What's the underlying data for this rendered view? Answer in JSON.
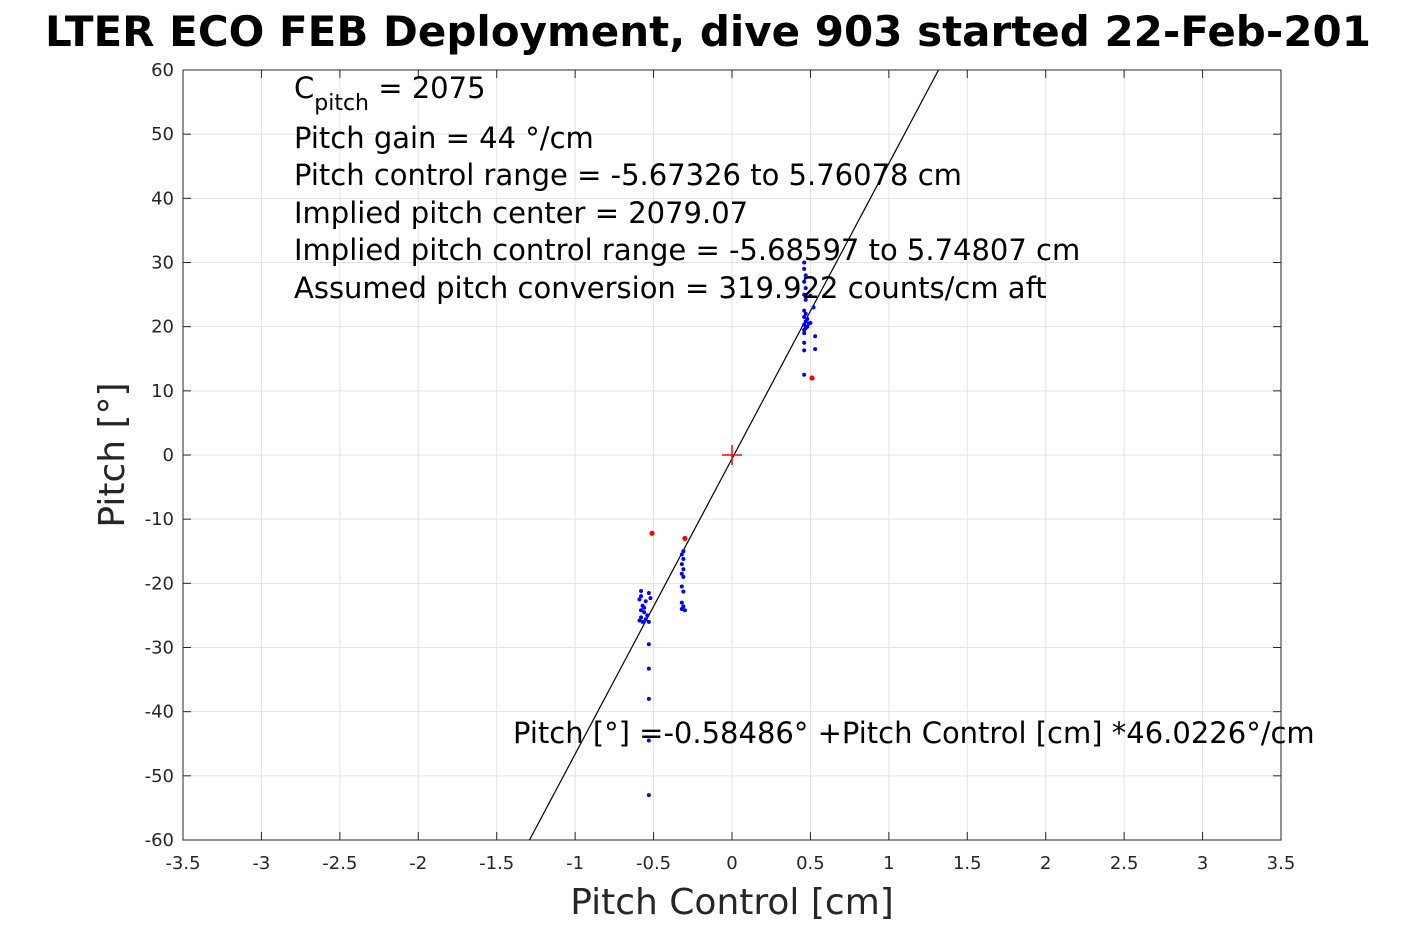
{
  "chart_data": {
    "type": "scatter",
    "title": "LTER ECO FEB Deployment, dive 903 started 22-Feb-201",
    "xlabel": "Pitch Control [cm]",
    "ylabel": "Pitch [°]",
    "xlim": [
      -3.5,
      3.5
    ],
    "ylim": [
      -60,
      60
    ],
    "grid": true,
    "x_ticks": [
      -3.5,
      -3,
      -2.5,
      -2,
      -1.5,
      -1,
      -0.5,
      0,
      0.5,
      1,
      1.5,
      2,
      2.5,
      3,
      3.5
    ],
    "y_ticks": [
      -60,
      -50,
      -40,
      -30,
      -20,
      -10,
      0,
      10,
      20,
      30,
      40,
      50,
      60
    ],
    "x_tick_labels": [
      "-3.5",
      "-3",
      "-2.5",
      "-2",
      "-1.5",
      "-1",
      "-0.5",
      "0",
      "0.5",
      "1",
      "1.5",
      "2",
      "2.5",
      "3",
      "3.5"
    ],
    "y_tick_labels": [
      "-60",
      "-50",
      "-40",
      "-30",
      "-20",
      "-10",
      "0",
      "10",
      "20",
      "30",
      "40",
      "50",
      "60"
    ],
    "fit_line": {
      "intercept": -0.58486,
      "slope": 46.0226,
      "color": "#000000"
    },
    "center_marker": {
      "x": 0,
      "y": 0,
      "color": "#ff0000",
      "shape": "plus"
    },
    "series": [
      {
        "color": "#0000ff",
        "points": [
          [
            0.46,
            30
          ],
          [
            0.46,
            29
          ],
          [
            0.47,
            28
          ],
          [
            0.46,
            27
          ],
          [
            0.47,
            26
          ],
          [
            0.46,
            25
          ],
          [
            0.47,
            24.2
          ],
          [
            0.5,
            24.8
          ],
          [
            0.52,
            23
          ],
          [
            0.46,
            22.5
          ],
          [
            0.47,
            22
          ],
          [
            0.46,
            21.5
          ],
          [
            0.48,
            21.2
          ],
          [
            0.47,
            20.8
          ],
          [
            0.49,
            20.5
          ],
          [
            0.46,
            20.3
          ],
          [
            0.48,
            20
          ],
          [
            0.47,
            19.8
          ],
          [
            0.46,
            19.5
          ],
          [
            0.5,
            20.6
          ],
          [
            0.46,
            19
          ],
          [
            0.53,
            18.5
          ],
          [
            0.46,
            17.5
          ],
          [
            0.46,
            16.3
          ],
          [
            0.53,
            16.5
          ],
          [
            0.46,
            12.5
          ],
          [
            -0.31,
            -15
          ],
          [
            -0.32,
            -15.5
          ],
          [
            -0.31,
            -16.2
          ],
          [
            -0.32,
            -17
          ],
          [
            -0.31,
            -17.8
          ],
          [
            -0.32,
            -18.5
          ],
          [
            -0.31,
            -19
          ],
          [
            -0.32,
            -20.5
          ],
          [
            -0.31,
            -21.3
          ],
          [
            -0.32,
            -23
          ],
          [
            -0.31,
            -23.6
          ],
          [
            -0.3,
            -24.2
          ],
          [
            -0.32,
            -24
          ],
          [
            -0.58,
            -21.2
          ],
          [
            -0.58,
            -22
          ],
          [
            -0.59,
            -22.5
          ],
          [
            -0.53,
            -21.5
          ],
          [
            -0.52,
            -22.3
          ],
          [
            -0.55,
            -22.8
          ],
          [
            -0.57,
            -23.5
          ],
          [
            -0.58,
            -24.2
          ],
          [
            -0.56,
            -24.5
          ],
          [
            -0.54,
            -25
          ],
          [
            -0.58,
            -25.3
          ],
          [
            -0.59,
            -25.8
          ],
          [
            -0.57,
            -26
          ],
          [
            -0.55,
            -25.6
          ],
          [
            -0.56,
            -23.8
          ],
          [
            -0.53,
            -26
          ],
          [
            -0.53,
            -29.5
          ],
          [
            -0.53,
            -33.3
          ],
          [
            -0.53,
            -38
          ],
          [
            -0.53,
            -44.5
          ],
          [
            -0.53,
            -53
          ]
        ]
      },
      {
        "color": "#ff0000",
        "points": [
          [
            0.51,
            12
          ],
          [
            -0.51,
            -12.2
          ],
          [
            -0.3,
            -13
          ]
        ]
      }
    ],
    "annotations": {
      "c_pitch_main": "C",
      "c_pitch_sub": "pitch",
      "c_pitch_value": " = 2075",
      "lines": [
        "Pitch gain = 44 °/cm",
        "Pitch control range = -5.67326 to 5.76078 cm",
        "Implied pitch center = 2079.07",
        "Implied pitch control range = -5.68597 to 5.74807 cm",
        "Assumed pitch conversion = 319.922 counts/cm aft"
      ],
      "fit_equation": "Pitch [°] =-0.58486° +Pitch Control [cm] *46.0226°/cm"
    }
  }
}
